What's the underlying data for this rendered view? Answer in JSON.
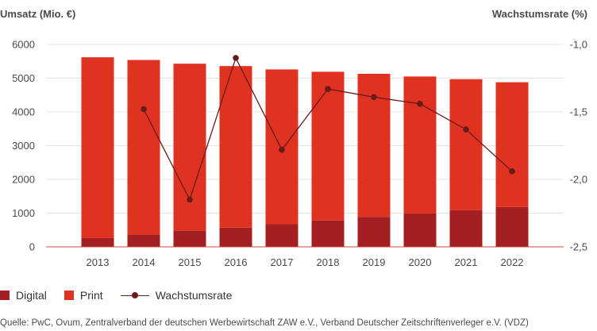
{
  "chart_data": {
    "type": "bar",
    "categories": [
      "2013",
      "2014",
      "2015",
      "2016",
      "2017",
      "2018",
      "2019",
      "2020",
      "2021",
      "2022"
    ],
    "series": [
      {
        "name": "Digital",
        "kind": "bar-stacked",
        "axis": "left",
        "color": "#a31f22",
        "values": [
          260,
          370,
          480,
          570,
          670,
          780,
          890,
          990,
          1090,
          1180
        ]
      },
      {
        "name": "Print",
        "kind": "bar-stacked",
        "axis": "left",
        "color": "#e03221",
        "values": [
          5360,
          5170,
          4950,
          4790,
          4590,
          4410,
          4240,
          4060,
          3880,
          3700
        ]
      },
      {
        "name": "Wachstumsrate",
        "kind": "line",
        "axis": "right",
        "color": "#6b1a1a",
        "values": [
          null,
          -1.48,
          -2.15,
          -1.1,
          -1.78,
          -1.33,
          -1.39,
          -1.44,
          -1.63,
          -1.94
        ]
      }
    ],
    "left_axis": {
      "label": "Umsatz (Mio. €)",
      "ylim": [
        0,
        6000
      ],
      "ticks": [
        0,
        1000,
        2000,
        3000,
        4000,
        5000,
        6000
      ]
    },
    "right_axis": {
      "label": "Wachstumsrate (%)",
      "ylim": [
        -2.5,
        -1.0
      ],
      "ticks": [
        -2.5,
        -2.0,
        -1.5,
        -1.0
      ],
      "tick_labels": [
        "-2,5",
        "-2,0",
        "-1,5",
        "-1,0"
      ]
    },
    "grid": "horizontal",
    "legend_position": "bottom-left"
  },
  "legend": {
    "digital": "Digital",
    "print": "Print",
    "rate": "Wachstumsrate"
  },
  "source": "Quelle: PwC, Ovum, Zentralverband der deutschen Werbewirtschaft ZAW e.V., Verband Deutscher Zeitschriftenverleger e.V. (VDZ)"
}
